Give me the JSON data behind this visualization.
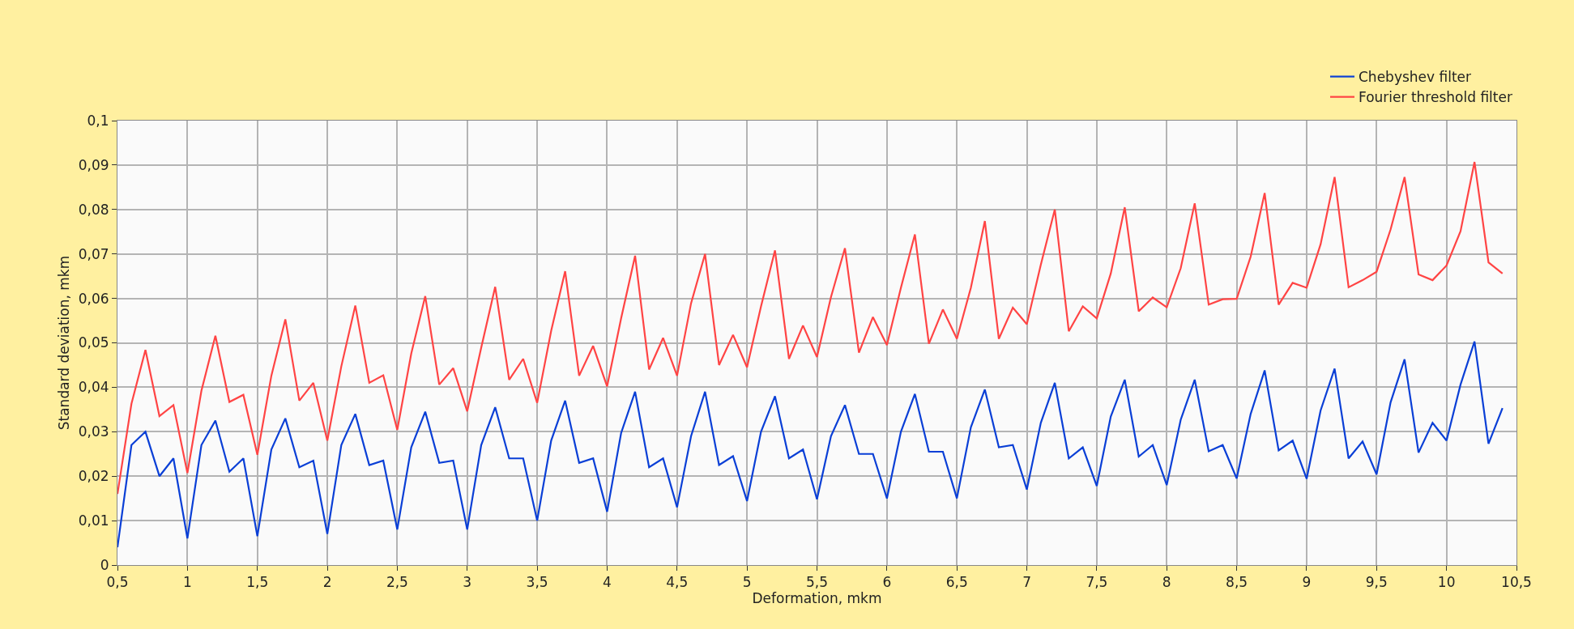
{
  "chart_data": {
    "type": "line",
    "xlabel": "Deformation, mkm",
    "ylabel": "Standard deviation, mkm",
    "xlim": [
      0.5,
      10.5
    ],
    "ylim": [
      0,
      0.1
    ],
    "xticks": [
      {
        "value": 0.5,
        "label": "0,5"
      },
      1,
      {
        "value": 1.5,
        "label": "1,5"
      },
      2,
      {
        "value": 2.5,
        "label": "2,5"
      },
      3,
      {
        "value": 3.5,
        "label": "3,5"
      },
      4,
      {
        "value": 4.5,
        "label": "4,5"
      },
      5,
      {
        "value": 5.5,
        "label": "5,5"
      },
      6,
      {
        "value": 6.5,
        "label": "6,5"
      },
      7,
      {
        "value": 7.5,
        "label": "7,5"
      },
      8,
      {
        "value": 8.5,
        "label": "8,5"
      },
      9,
      {
        "value": 9.5,
        "label": "9,5"
      },
      10,
      {
        "value": 10.5,
        "label": "10,5"
      }
    ],
    "yticks": [
      0,
      {
        "value": 0.01,
        "label": "0,01"
      },
      {
        "value": 0.02,
        "label": "0,02"
      },
      {
        "value": 0.03,
        "label": "0,03"
      },
      {
        "value": 0.04,
        "label": "0,04"
      },
      {
        "value": 0.05,
        "label": "0,05"
      },
      {
        "value": 0.06,
        "label": "0,06"
      },
      {
        "value": 0.07,
        "label": "0,07"
      },
      {
        "value": 0.08,
        "label": "0,08"
      },
      {
        "value": 0.09,
        "label": "0,09"
      },
      {
        "value": 0.1,
        "label": "0,1"
      }
    ],
    "grid": true,
    "legend": "top right",
    "marker": "none",
    "line_style": "solid",
    "x": [
      0.5,
      0.6,
      0.7,
      0.8,
      0.9,
      1.0,
      1.1,
      1.2,
      1.3,
      1.4,
      1.5,
      1.6,
      1.7,
      1.8,
      1.9,
      2.0,
      2.1,
      2.2,
      2.3,
      2.4,
      2.5,
      2.6,
      2.7,
      2.8,
      2.9,
      3.0,
      3.1,
      3.2,
      3.3,
      3.4,
      3.5,
      3.6,
      3.7,
      3.8,
      3.9,
      4.0,
      4.1,
      4.2,
      4.3,
      4.4,
      4.5,
      4.6,
      4.7,
      4.8,
      4.9,
      5.0,
      5.1,
      5.2,
      5.3,
      5.4,
      5.5,
      5.6,
      5.7,
      5.8,
      5.9,
      6.0,
      6.1,
      6.2,
      6.3,
      6.4,
      6.5,
      6.6,
      6.7,
      6.8,
      6.9,
      7.0,
      7.1,
      7.2,
      7.3,
      7.4,
      7.5,
      7.6,
      7.7,
      7.8,
      7.9,
      8.0,
      8.1,
      8.2,
      8.3,
      8.4,
      8.5,
      8.6,
      8.7,
      8.8,
      8.9,
      9.0,
      9.1,
      9.2,
      9.3,
      9.4,
      9.5,
      9.6,
      9.7,
      9.8,
      9.9,
      10.0,
      10.1,
      10.2,
      10.3,
      10.4
    ],
    "series": [
      {
        "name": "Chebyshev filter",
        "color": "#0a3fd6",
        "values": [
          0.004,
          0.027,
          0.03,
          0.02,
          0.024,
          0.006,
          0.027,
          0.0325,
          0.021,
          0.024,
          0.0065,
          0.026,
          0.033,
          0.022,
          0.0235,
          0.007,
          0.027,
          0.034,
          0.0225,
          0.0235,
          0.008,
          0.0265,
          0.0345,
          0.023,
          0.0235,
          0.008,
          0.027,
          0.0355,
          0.024,
          0.024,
          0.01,
          0.028,
          0.037,
          0.023,
          0.024,
          0.012,
          0.0297,
          0.039,
          0.022,
          0.024,
          0.013,
          0.029,
          0.039,
          0.0225,
          0.0245,
          0.0144,
          0.03,
          0.038,
          0.024,
          0.026,
          0.0148,
          0.029,
          0.036,
          0.025,
          0.025,
          0.015,
          0.03,
          0.0385,
          0.0255,
          0.0255,
          0.015,
          0.031,
          0.0395,
          0.0265,
          0.027,
          0.017,
          0.032,
          0.041,
          0.024,
          0.0265,
          0.0178,
          0.0334,
          0.0417,
          0.0244,
          0.027,
          0.018,
          0.0327,
          0.0417,
          0.0256,
          0.027,
          0.0195,
          0.034,
          0.0438,
          0.0258,
          0.028,
          0.0194,
          0.0348,
          0.0442,
          0.024,
          0.0278,
          0.0204,
          0.0366,
          0.0463,
          0.0253,
          0.032,
          0.028,
          0.0406,
          0.0503,
          0.0273,
          0.0353
        ]
      },
      {
        "name": "Fourier threshold filter",
        "color": "#ff4444",
        "values": [
          0.016,
          0.0363,
          0.0484,
          0.0335,
          0.036,
          0.0207,
          0.0392,
          0.0516,
          0.0367,
          0.0383,
          0.0248,
          0.0426,
          0.0553,
          0.037,
          0.041,
          0.028,
          0.0447,
          0.0584,
          0.041,
          0.0427,
          0.0304,
          0.0476,
          0.0605,
          0.0406,
          0.0443,
          0.0346,
          0.0489,
          0.0626,
          0.0417,
          0.0464,
          0.0365,
          0.0527,
          0.0661,
          0.0426,
          0.0493,
          0.0402,
          0.0555,
          0.0696,
          0.044,
          0.0511,
          0.0426,
          0.0589,
          0.07,
          0.045,
          0.0518,
          0.0445,
          0.0582,
          0.0708,
          0.0464,
          0.0539,
          0.0468,
          0.0603,
          0.0713,
          0.0478,
          0.0558,
          0.0495,
          0.0624,
          0.0744,
          0.0498,
          0.0575,
          0.0509,
          0.0624,
          0.0774,
          0.0509,
          0.0579,
          0.0542,
          0.0676,
          0.08,
          0.0526,
          0.0582,
          0.0555,
          0.0656,
          0.0805,
          0.0571,
          0.0602,
          0.058,
          0.0668,
          0.0814,
          0.0586,
          0.0598,
          0.0599,
          0.0694,
          0.0837,
          0.0586,
          0.0635,
          0.0624,
          0.0722,
          0.0873,
          0.0625,
          0.0641,
          0.066,
          0.0755,
          0.0873,
          0.0654,
          0.0641,
          0.0674,
          0.0751,
          0.0907,
          0.0681,
          0.0656
        ]
      }
    ]
  }
}
